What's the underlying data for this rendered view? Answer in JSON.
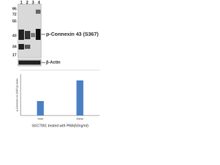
{
  "blot": {
    "lanes": [
      "1",
      "2",
      "3",
      "4"
    ],
    "markers": [
      "95",
      "72",
      "55",
      "43",
      "34",
      "17"
    ],
    "target_label": "p-Connexin 43 (S367)",
    "control_label": "β-Actin"
  },
  "chart_data": {
    "type": "bar",
    "ylabel": "p-Connexin 43 (S367)/β-Actin",
    "xlabel": "SGC7901 treated with PMA(50ng/ml)",
    "categories": [
      "0min",
      "20min"
    ],
    "values": [
      0.35,
      0.85
    ],
    "color": "#4a7fc4",
    "ylim": [
      0,
      1
    ]
  }
}
